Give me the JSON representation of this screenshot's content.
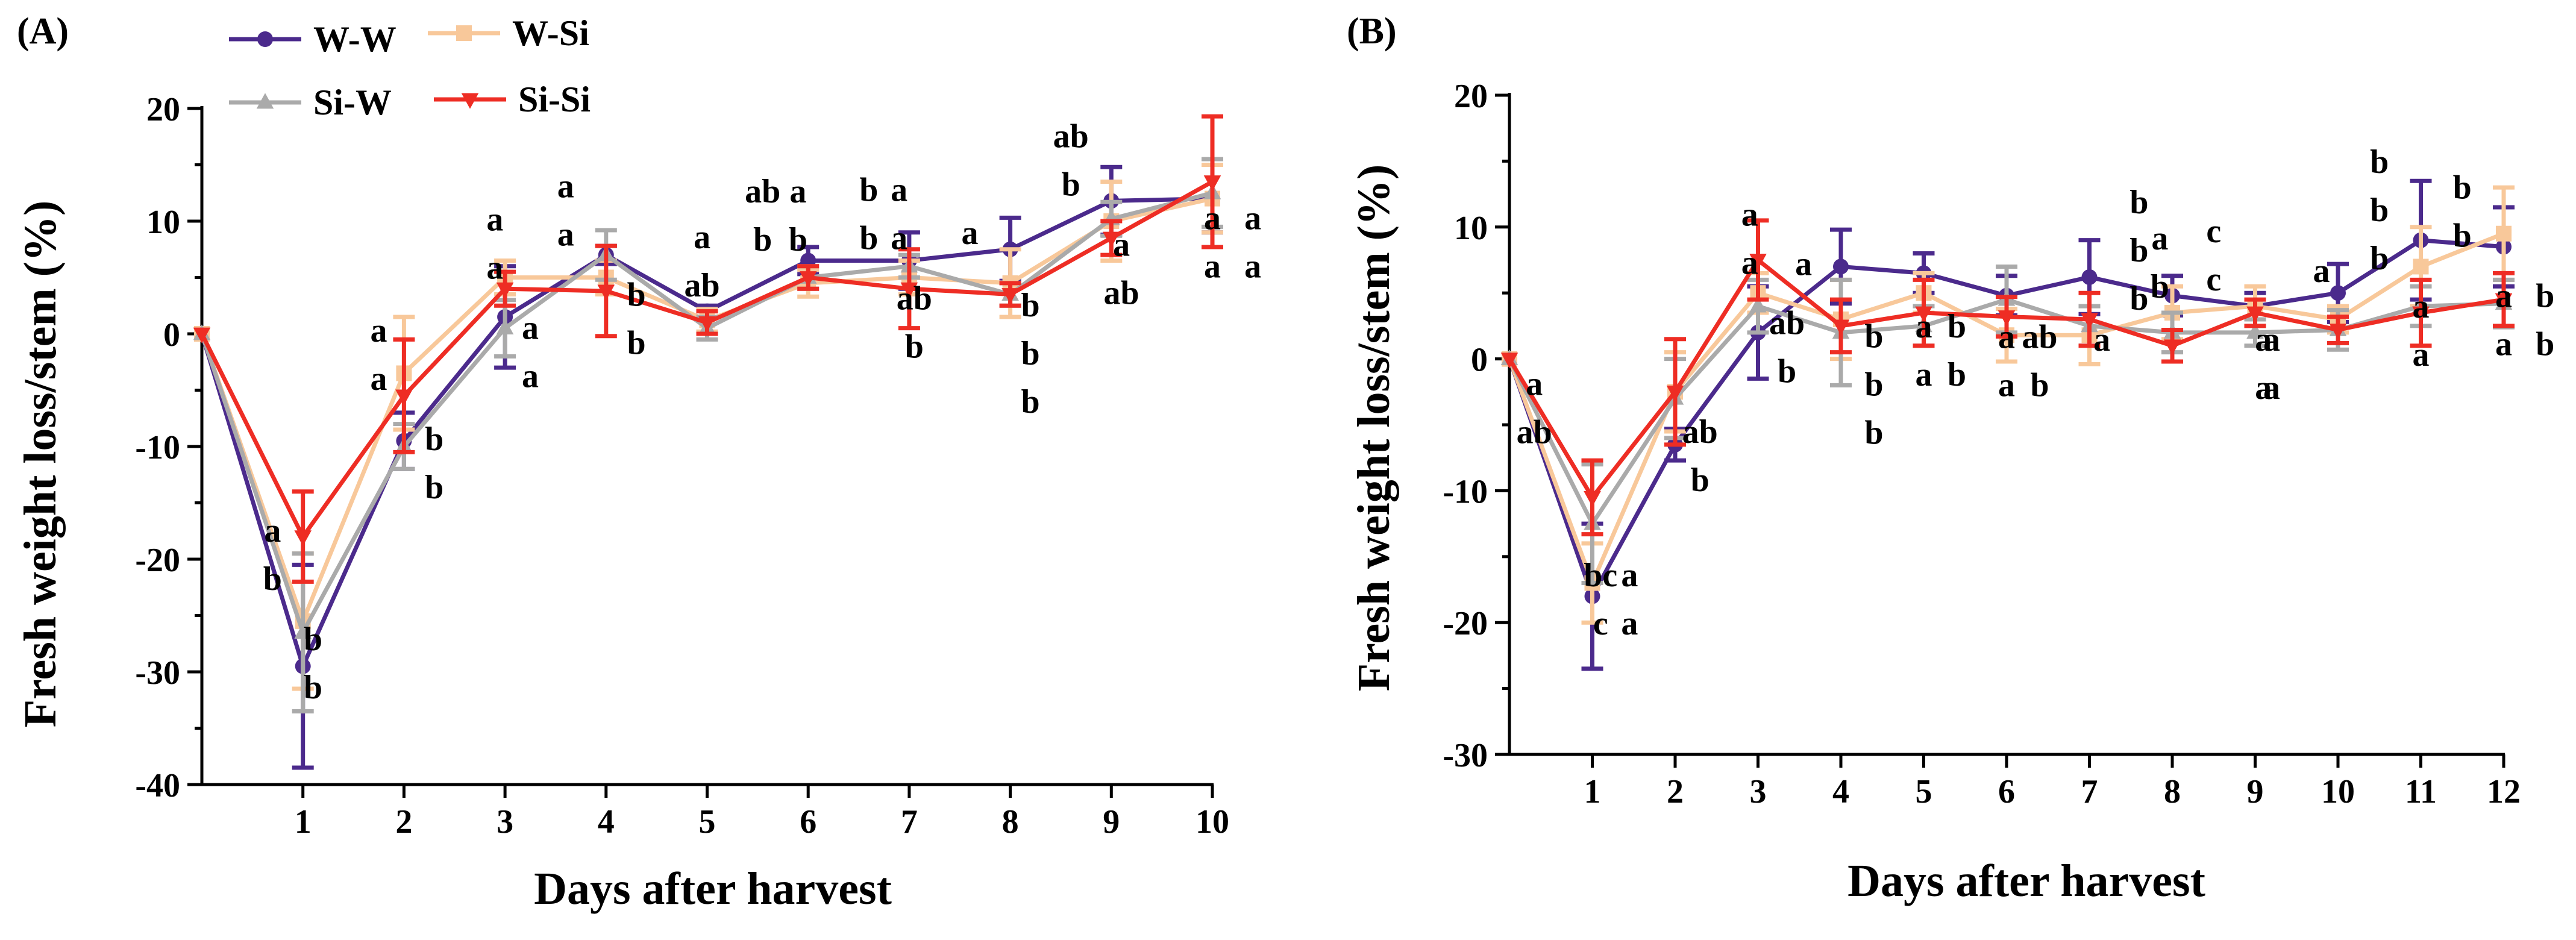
{
  "series_styles": [
    {
      "name": "W-W",
      "color": "#4b2a8c",
      "marker": "circle"
    },
    {
      "name": "W-Si",
      "color": "#f8c89a",
      "marker": "square"
    },
    {
      "name": "Si-W",
      "color": "#aaaaaa",
      "marker": "triangle-up"
    },
    {
      "name": "Si-Si",
      "color": "#ee2d24",
      "marker": "triangle-down"
    }
  ],
  "chart_data": [
    {
      "panel": "(A)",
      "type": "line",
      "xlabel": "Days after harvest",
      "ylabel": "Fresh weight loss/stem (%)",
      "x": [
        0,
        1,
        2,
        3,
        4,
        5,
        6,
        7,
        8,
        9,
        10
      ],
      "xticks": [
        "1",
        "2",
        "3",
        "4",
        "5",
        "6",
        "7",
        "8",
        "9",
        "10"
      ],
      "ylim": [
        -40,
        20
      ],
      "yticks": [
        "-40",
        "-30",
        "-20",
        "-10",
        "0",
        "10",
        "20"
      ],
      "legend": [
        "W-W",
        "W-Si",
        "Si-W",
        "Si-Si"
      ],
      "series": [
        {
          "name": "W-W",
          "values": [
            0,
            -29.5,
            -9.5,
            1.5,
            7,
            2,
            6.5,
            6.5,
            7.5,
            11.8,
            12
          ],
          "errors": [
            0,
            9,
            2.5,
            4.5,
            0.8,
            0.5,
            1.2,
            2.5,
            2.8,
            3,
            3
          ]
        },
        {
          "name": "W-Si",
          "values": [
            0,
            -25.5,
            -3.5,
            5,
            5,
            1.2,
            4.5,
            5,
            4.5,
            10,
            12
          ],
          "errors": [
            0,
            6,
            5,
            1.5,
            1.5,
            1,
            1.2,
            1.5,
            3,
            3.5,
            3
          ]
        },
        {
          "name": "Si-W",
          "values": [
            0,
            -26.5,
            -10,
            0.5,
            7,
            0.5,
            5,
            6,
            3.5,
            10.2,
            12.5
          ],
          "errors": [
            0,
            7,
            2,
            2.5,
            2.2,
            1,
            1,
            1,
            1,
            1.5,
            3
          ]
        },
        {
          "name": "Si-Si",
          "values": [
            0,
            -18,
            -5.5,
            4,
            3.8,
            1,
            5,
            4,
            3.5,
            8.5,
            13.5
          ],
          "errors": [
            0,
            4,
            5,
            1.5,
            4,
            1,
            1,
            3.5,
            1,
            1.5,
            5.8
          ]
        }
      ],
      "annotations": [
        {
          "x": 0.7,
          "labels": [
            "a",
            "b"
          ]
        },
        {
          "x": 1.1,
          "labels": [
            "b",
            "b"
          ]
        },
        {
          "x": 1.75,
          "labels": [
            "a",
            "a"
          ]
        },
        {
          "x": 2.3,
          "labels": [
            "b",
            "b"
          ]
        },
        {
          "x": 2.9,
          "labels": [
            "a",
            "a"
          ]
        },
        {
          "x": 3.6,
          "labels": [
            "a",
            "a"
          ]
        },
        {
          "x": 3.25,
          "labels": [
            "a",
            "a"
          ]
        },
        {
          "x": 4.3,
          "labels": [
            "b",
            "b"
          ]
        },
        {
          "x": 4.95,
          "labels": [
            "a",
            "ab"
          ]
        },
        {
          "x": 5.55,
          "labels": [
            "ab",
            "b"
          ]
        },
        {
          "x": 5.9,
          "labels": [
            "a",
            "b"
          ]
        },
        {
          "x": 6.6,
          "labels": [
            "b",
            "b"
          ]
        },
        {
          "x": 6.9,
          "labels": [
            "a",
            "a"
          ]
        },
        {
          "x": 7.05,
          "labels": [
            "ab",
            "b"
          ]
        },
        {
          "x": 7.6,
          "labels": [
            "a"
          ]
        },
        {
          "x": 8.2,
          "labels": [
            "b",
            "b",
            "b"
          ]
        },
        {
          "x": 9.1,
          "labels": [
            "a",
            "ab"
          ]
        },
        {
          "x": 8.6,
          "labels": [
            "ab",
            "b"
          ]
        },
        {
          "x": 10.0,
          "labels": [
            "a",
            "a"
          ]
        },
        {
          "x": 10.4,
          "labels": [
            "a",
            "a"
          ]
        }
      ]
    },
    {
      "panel": "(B)",
      "type": "line",
      "xlabel": "Days after harvest",
      "ylabel": "Fresh weight loss/stem (%)",
      "x": [
        0,
        1,
        2,
        3,
        4,
        5,
        6,
        7,
        8,
        9,
        10,
        11,
        12
      ],
      "xticks": [
        "1",
        "2",
        "3",
        "4",
        "5",
        "6",
        "7",
        "8",
        "9",
        "10",
        "11",
        "12"
      ],
      "ylim": [
        -30,
        20
      ],
      "yticks": [
        "-30",
        "-20",
        "-10",
        "0",
        "10",
        "20"
      ],
      "series": [
        {
          "name": "W-W",
          "values": [
            0,
            -18,
            -6.5,
            2,
            7,
            6.5,
            4.8,
            6.2,
            4.8,
            4,
            5,
            9,
            8.5
          ],
          "errors": [
            0,
            5.5,
            1.2,
            3.5,
            2.8,
            1.5,
            1.5,
            2.8,
            1.5,
            1,
            2.2,
            4.5,
            3
          ]
        },
        {
          "name": "W-Si",
          "values": [
            0,
            -17,
            -2.5,
            5,
            3,
            5,
            1.8,
            1.8,
            3.5,
            4,
            3,
            7,
            9.5
          ],
          "errors": [
            0,
            3,
            3,
            1.5,
            3,
            1.5,
            2,
            2.2,
            2,
            1.5,
            1,
            3,
            3.5
          ]
        },
        {
          "name": "Si-W",
          "values": [
            0,
            -12.5,
            -3,
            4,
            2,
            2.5,
            4.5,
            2.5,
            2,
            2,
            2.2,
            4,
            4.2
          ],
          "errors": [
            0,
            4.5,
            3,
            2,
            4,
            1.5,
            2.5,
            1.5,
            1.5,
            1,
            1.5,
            1.5,
            1.8
          ]
        },
        {
          "name": "Si-Si",
          "values": [
            0,
            -10.5,
            -2.5,
            7.5,
            2.5,
            3.5,
            3.2,
            3,
            1,
            3.5,
            2.2,
            3.5,
            4.5
          ],
          "errors": [
            0,
            2.8,
            4,
            3,
            2,
            2.5,
            1.5,
            2,
            1.2,
            1,
            1,
            2.5,
            2
          ]
        }
      ],
      "annotations": [
        {
          "x": 0.3,
          "labels": [
            "a",
            "ab"
          ]
        },
        {
          "x": 1.1,
          "labels": [
            "bc",
            "c"
          ]
        },
        {
          "x": 1.45,
          "labels": [
            "a",
            "a"
          ]
        },
        {
          "x": 2.3,
          "labels": [
            "ab",
            "b"
          ]
        },
        {
          "x": 2.9,
          "labels": [
            "a",
            "a"
          ]
        },
        {
          "x": 3.35,
          "labels": [
            "ab",
            "b"
          ]
        },
        {
          "x": 3.55,
          "labels": [
            "a"
          ]
        },
        {
          "x": 4.4,
          "labels": [
            "b",
            "b",
            "b"
          ]
        },
        {
          "x": 5.0,
          "labels": [
            "a",
            "a"
          ]
        },
        {
          "x": 5.4,
          "labels": [
            "b",
            "b"
          ]
        },
        {
          "x": 6.0,
          "labels": [
            "a",
            "a"
          ]
        },
        {
          "x": 6.4,
          "labels": [
            "ab",
            "b"
          ]
        },
        {
          "x": 7.15,
          "labels": [
            "a"
          ]
        },
        {
          "x": 7.6,
          "labels": [
            "b",
            "b",
            "b"
          ]
        },
        {
          "x": 7.85,
          "labels": [
            "a",
            "b"
          ]
        },
        {
          "x": 8.5,
          "labels": [
            "c",
            "c"
          ]
        },
        {
          "x": 9.1,
          "labels": [
            "a",
            "a"
          ]
        },
        {
          "x": 9.2,
          "labels": [
            "a",
            "a"
          ]
        },
        {
          "x": 9.8,
          "labels": [
            "a"
          ]
        },
        {
          "x": 10.5,
          "labels": [
            "b",
            "b",
            "b"
          ]
        },
        {
          "x": 11.0,
          "labels": [
            "a",
            "a"
          ]
        },
        {
          "x": 11.5,
          "labels": [
            "b",
            "b"
          ]
        },
        {
          "x": 12.0,
          "labels": [
            "a",
            "a"
          ]
        },
        {
          "x": 12.5,
          "labels": [
            "b",
            "b"
          ]
        }
      ]
    }
  ]
}
